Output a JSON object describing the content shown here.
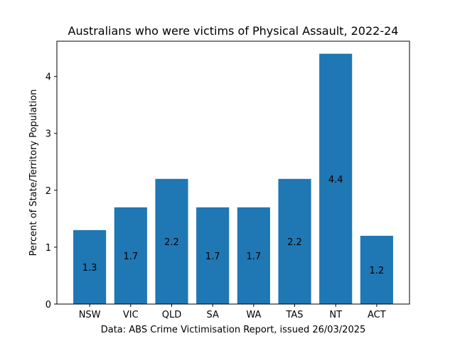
{
  "chart_data": {
    "type": "bar",
    "title": "Australians who were victims of Physical Assault, 2022-24",
    "xlabel": "Data: ABS Crime Victimisation Report, issued 26/03/2025",
    "ylabel": "Percent of State/Territory Population",
    "categories": [
      "NSW",
      "VIC",
      "QLD",
      "SA",
      "WA",
      "TAS",
      "NT",
      "ACT"
    ],
    "values": [
      1.3,
      1.7,
      2.2,
      1.7,
      1.7,
      2.2,
      4.4,
      1.2
    ],
    "data_labels": [
      "1.3",
      "1.7",
      "2.2",
      "1.7",
      "1.7",
      "2.2",
      "4.4",
      "1.2"
    ],
    "yticks": [
      0,
      1,
      2,
      3,
      4
    ],
    "ylim": [
      0,
      4.62
    ],
    "bar_color": "#1f77b4",
    "grid": false,
    "legend": "none"
  }
}
